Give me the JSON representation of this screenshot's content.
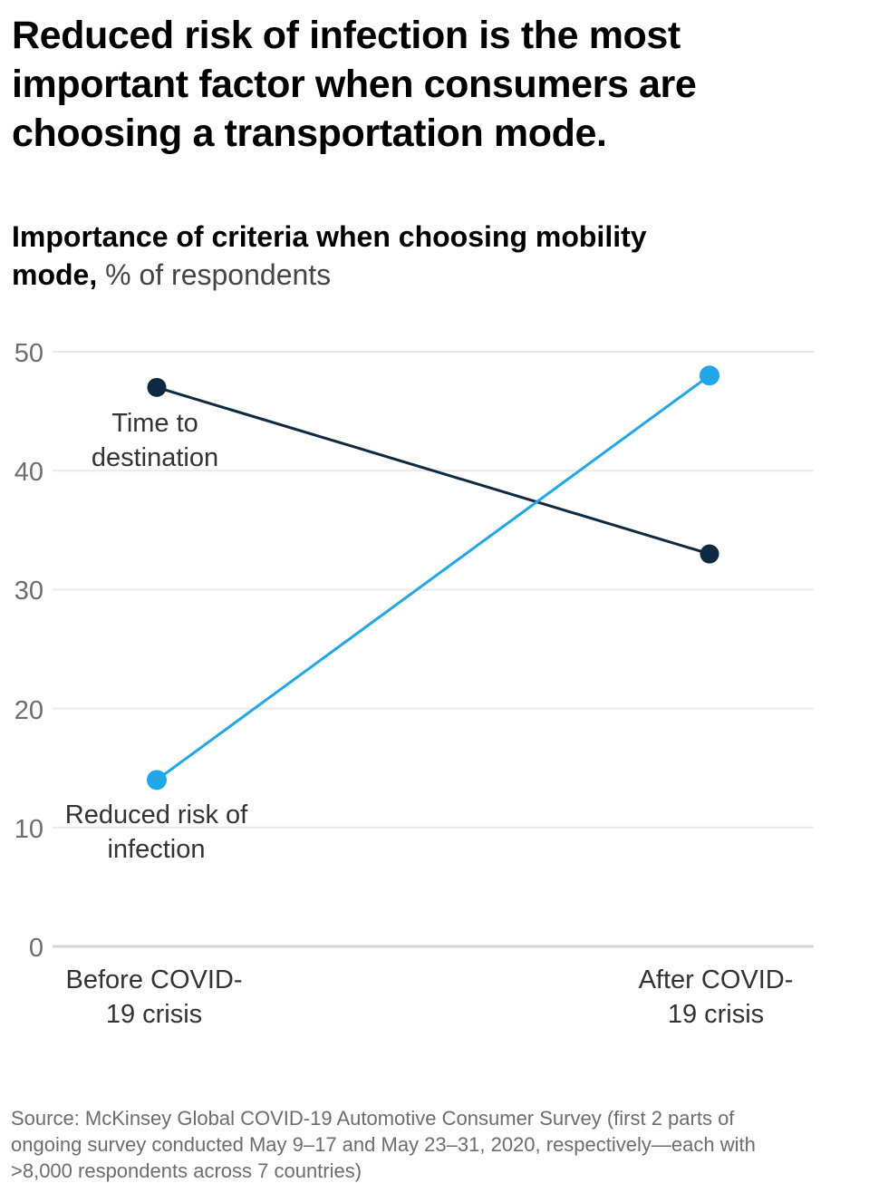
{
  "page": {
    "title": "Reduced risk of infection is the most important factor when consumers are choosing a transportation mode.",
    "subtitle_bold": "Importance of criteria when choosing mobility mode,",
    "subtitle_unit": " % of respondents",
    "source": "Source: McKinsey Global COVID-19 Automotive Consumer Survey (first 2 parts of ongoing survey conducted May 9–17 and May 23–31, 2020, respectively—each with >8,000 respondents across 7 countries)"
  },
  "chart_data": {
    "type": "line",
    "subtype": "slope",
    "title": "Importance of criteria when choosing mobility mode",
    "ylabel": "% of respondents",
    "categories": [
      "Before COVID-19 crisis",
      "After COVID-19 crisis"
    ],
    "series": [
      {
        "name": "Time to destination",
        "slug": "time-to-destination",
        "values": [
          47,
          33
        ],
        "color": "#0e2a42"
      },
      {
        "name": "Reduced risk of infection",
        "slug": "reduced-risk-of-infection",
        "values": [
          14,
          48
        ],
        "color": "#1ea8e9"
      }
    ],
    "yticks": [
      0,
      10,
      20,
      30,
      40,
      50
    ],
    "ylim": [
      0,
      50
    ],
    "grid": "horizontal",
    "grid_color": "#e9e9e9",
    "axis_line_color": "#d4d4d4",
    "legend": "direct-labels"
  }
}
